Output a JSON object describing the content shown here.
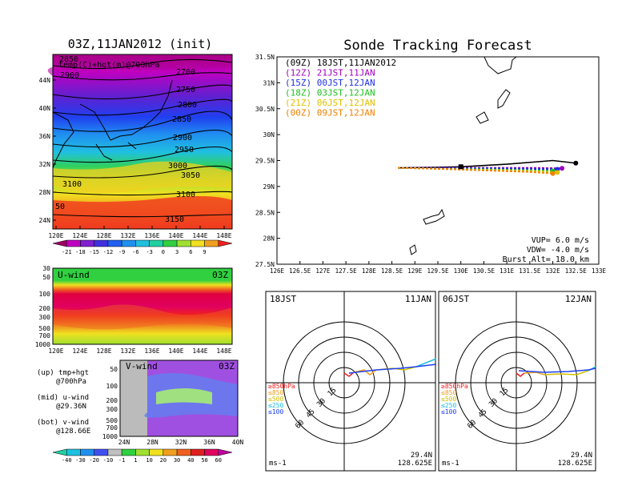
{
  "colors": {
    "cold1": "#a00060",
    "cold2": "#c000c0",
    "cold3": "#6020d0",
    "cold4": "#2040f0",
    "cold5": "#2090f0",
    "cold6": "#20c0e0",
    "cool": "#20d0a0",
    "mid1": "#30d040",
    "mid2": "#a0e030",
    "warm1": "#f0e020",
    "warm2": "#f0a020",
    "warm3": "#f06020",
    "hot": "#f02020",
    "wind_pos": "#e00050",
    "wind_neg": "#a050e0"
  },
  "top_left": {
    "title": "03Z,11JAN2012 (init)",
    "subtitle": "temp(C)+hgt(m)@700hPa",
    "lat_labels": [
      "44N",
      "40N",
      "36N",
      "32N",
      "28N",
      "24N"
    ],
    "lon_labels": [
      "120E",
      "124E",
      "128E",
      "132E",
      "136E",
      "140E",
      "144E",
      "148E"
    ],
    "contour_labels": [
      "2850",
      "2900",
      "2700",
      "2750",
      "2800",
      "2850",
      "2900",
      "2950",
      "3000",
      "3050",
      "3100",
      "3100",
      "3150",
      "50"
    ],
    "colorbar": [
      "-21",
      "-18",
      "-15",
      "-12",
      "-9",
      "-6",
      "-3",
      "0",
      "3",
      "6",
      "9"
    ]
  },
  "u_panel": {
    "title": "U-wind",
    "time": "03Z",
    "p_labels": [
      "30",
      "50",
      "100",
      "200",
      "300",
      "500",
      "700",
      "1000"
    ],
    "lon_labels": [
      "120E",
      "124E",
      "128E",
      "132E",
      "136E",
      "140E",
      "144E",
      "148E"
    ]
  },
  "v_panel": {
    "title": "V-wind",
    "time": "03Z",
    "p_labels": [
      "50",
      "100",
      "200",
      "300",
      "500",
      "700",
      "1000"
    ],
    "lat_labels": [
      "24N",
      "28N",
      "32N",
      "36N",
      "40N"
    ]
  },
  "legend_notes": [
    {
      "line1": "(up) tmp+hgt",
      "line2": "@700hPa"
    },
    {
      "line1": "(mid) u-wind",
      "line2": "@29.36N"
    },
    {
      "line1": "(bot) v-wind",
      "line2": "@128.66E"
    }
  ],
  "bottom_colorbar": [
    "-40",
    "-30",
    "-20",
    "-10",
    "-1",
    "1",
    "10",
    "20",
    "30",
    "40",
    "50",
    "60"
  ],
  "tracking": {
    "title": "Sonde Tracking Forecast",
    "legend": [
      {
        "text": "(09Z) 18JST,11JAN2012",
        "color": "#000000"
      },
      {
        "text": "(12Z) 21JST,11JAN",
        "color": "#a000c0"
      },
      {
        "text": "(15Z) 00JST,12JAN",
        "color": "#2030e0"
      },
      {
        "text": "(18Z) 03JST,12JAN",
        "color": "#20c020"
      },
      {
        "text": "(21Z) 06JST,12JAN",
        "color": "#e0c000"
      },
      {
        "text": "(00Z) 09JST,12JAN",
        "color": "#f08000"
      }
    ],
    "lat_labels": [
      "31.5N",
      "31N",
      "30.5N",
      "30N",
      "29.5N",
      "29N",
      "28.5N",
      "28N",
      "27.5N"
    ],
    "lon_labels": [
      "126E",
      "126.5E",
      "127E",
      "127.5E",
      "128E",
      "128.5E",
      "129E",
      "129.5E",
      "130E",
      "130.5E",
      "131E",
      "131.5E",
      "132E",
      "132.5E",
      "133E"
    ],
    "params": [
      "VUP= 6.0 m/s",
      "VDW= -4.0 m/s",
      "Burst Alt= 18.0 km"
    ]
  },
  "hodo_left": {
    "time": "18JST",
    "date": "11JAN",
    "rings": [
      "15",
      "30",
      "45",
      "60"
    ],
    "levels": [
      "≥850hPa",
      "≤850",
      "≤500",
      "≤250",
      "≤100"
    ],
    "level_colors": [
      "#f02020",
      "#f0a020",
      "#d0c000",
      "#20c0e0",
      "#2040f0"
    ],
    "lat": "29.4N",
    "lon": "128.625E",
    "unit": "ms-1"
  },
  "hodo_right": {
    "time": "06JST",
    "date": "12JAN",
    "rings": [
      "15",
      "30",
      "45",
      "60"
    ],
    "levels": [
      "≥850hPa",
      "≤850",
      "≤500",
      "≤250",
      "≤100"
    ],
    "level_colors": [
      "#f02020",
      "#f0a020",
      "#d0c000",
      "#20c0e0",
      "#2040f0"
    ],
    "lat": "29.4N",
    "lon": "128.625E",
    "unit": "ms-1"
  },
  "chart_data": [
    {
      "type": "heatmap",
      "title": "03Z,11JAN2012 (init)",
      "subtitle": "temp(C)+hgt(m)@700hPa",
      "x_ticks": [
        "120E",
        "124E",
        "128E",
        "132E",
        "136E",
        "140E",
        "144E",
        "148E"
      ],
      "y_ticks": [
        "24N",
        "28N",
        "32N",
        "36N",
        "40N",
        "44N"
      ],
      "colorbar_ticks": [
        -21,
        -18,
        -15,
        -12,
        -9,
        -6,
        -3,
        0,
        3,
        6,
        9
      ]
    },
    {
      "type": "heatmap",
      "title": "U-wind",
      "x_ticks": [
        "120E",
        "124E",
        "128E",
        "132E",
        "136E",
        "140E",
        "144E",
        "148E"
      ],
      "y_ticks": [
        30,
        50,
        100,
        200,
        300,
        500,
        700,
        1000
      ]
    },
    {
      "type": "heatmap",
      "title": "V-wind",
      "x_ticks": [
        "24N",
        "28N",
        "32N",
        "36N",
        "40N"
      ],
      "y_ticks": [
        50,
        100,
        200,
        300,
        500,
        700,
        1000
      ],
      "colorbar_ticks": [
        -40,
        -30,
        -20,
        -10,
        -1,
        1,
        10,
        20,
        30,
        40,
        50,
        60
      ]
    },
    {
      "type": "line",
      "title": "Sonde Tracking Forecast",
      "xlim": [
        126,
        133
      ],
      "ylim": [
        27.5,
        31.5
      ],
      "series": [
        {
          "name": "(09Z) 18JST,11JAN2012",
          "x": [
            128.63,
            129.5,
            130.0,
            131.0,
            132.0,
            132.5
          ],
          "y": [
            29.36,
            29.37,
            29.38,
            29.43,
            29.5,
            29.45
          ]
        },
        {
          "name": "(12Z) 21JST,11JAN",
          "x": [
            128.63,
            129.5,
            130.5,
            131.5,
            132.2
          ],
          "y": [
            29.36,
            29.36,
            29.36,
            29.36,
            29.35
          ]
        },
        {
          "name": "(15Z) 00JST,12JAN",
          "x": [
            128.63,
            129.5,
            130.5,
            131.5,
            132.1
          ],
          "y": [
            29.36,
            29.35,
            29.35,
            29.34,
            29.33
          ]
        },
        {
          "name": "(18Z) 03JST,12JAN",
          "x": [
            128.63,
            129.5,
            130.5,
            131.5,
            132.0
          ],
          "y": [
            29.36,
            29.34,
            29.33,
            29.31,
            29.3
          ]
        },
        {
          "name": "(21Z) 06JST,12JAN",
          "x": [
            128.63,
            129.5,
            130.5,
            131.5,
            132.1
          ],
          "y": [
            29.36,
            29.34,
            29.32,
            29.3,
            29.27
          ]
        },
        {
          "name": "(00Z) 09JST,12JAN",
          "x": [
            128.63,
            129.5,
            130.5,
            131.5,
            132.0
          ],
          "y": [
            29.36,
            29.34,
            29.31,
            29.28,
            29.25
          ]
        }
      ]
    }
  ]
}
